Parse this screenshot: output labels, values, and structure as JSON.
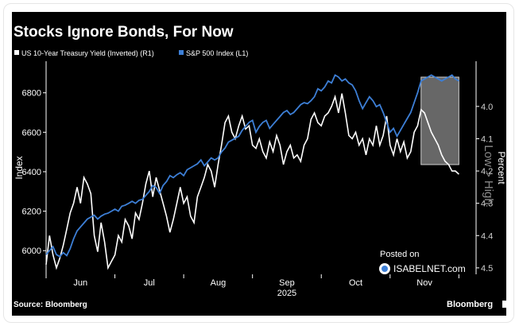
{
  "chart_data": {
    "type": "line",
    "title": "Stocks Ignore Bonds, For Now",
    "legend": [
      {
        "label": "US 10-Year Treasury Yield (Inverted) (R1)",
        "color": "#ffffff"
      },
      {
        "label": "S&P 500 Index (L1)",
        "color": "#3d7fd6"
      }
    ],
    "ylabel_left": "Index",
    "ylabel_right": "Percent",
    "right_axis_note": "Low > High",
    "x_ticks": [
      "Jun",
      "Jul",
      "Aug",
      "Sep",
      "Oct",
      "Nov"
    ],
    "x_year": "2025",
    "ylim_left": [
      5880,
      6960
    ],
    "yticks_left": [
      "6000",
      "6200",
      "6400",
      "6600",
      "6800"
    ],
    "ylim_right_inverted": [
      3.86,
      4.52
    ],
    "yticks_right": [
      "4.0",
      "4.1",
      "4.2",
      "4.3",
      "4.4",
      "4.5"
    ],
    "x_range_months": [
      0,
      6.25
    ],
    "highlight_x_range_months": [
      5.45,
      6.0
    ],
    "series": [
      {
        "name": "US 10-Year Treasury Yield (Inverted) (R1)",
        "axis": "right",
        "color": "#ffffff",
        "x": [
          0.0,
          0.05,
          0.1,
          0.15,
          0.2,
          0.25,
          0.3,
          0.35,
          0.4,
          0.45,
          0.5,
          0.55,
          0.6,
          0.65,
          0.7,
          0.75,
          0.8,
          0.85,
          0.9,
          0.95,
          1.0,
          1.05,
          1.1,
          1.15,
          1.2,
          1.25,
          1.3,
          1.35,
          1.4,
          1.45,
          1.5,
          1.55,
          1.6,
          1.65,
          1.7,
          1.75,
          1.8,
          1.85,
          1.9,
          1.95,
          2.0,
          2.05,
          2.1,
          2.15,
          2.2,
          2.25,
          2.3,
          2.35,
          2.4,
          2.45,
          2.5,
          2.55,
          2.6,
          2.65,
          2.7,
          2.75,
          2.8,
          2.85,
          2.9,
          2.95,
          3.0,
          3.05,
          3.1,
          3.15,
          3.2,
          3.25,
          3.3,
          3.35,
          3.4,
          3.45,
          3.5,
          3.55,
          3.6,
          3.65,
          3.7,
          3.75,
          3.8,
          3.85,
          3.9,
          3.95,
          4.0,
          4.05,
          4.1,
          4.15,
          4.2,
          4.25,
          4.3,
          4.35,
          4.4,
          4.45,
          4.5,
          4.55,
          4.6,
          4.65,
          4.7,
          4.75,
          4.8,
          4.85,
          4.9,
          4.95,
          5.0,
          5.05,
          5.1,
          5.15,
          5.2,
          5.25,
          5.3,
          5.35,
          5.4,
          5.45,
          5.5,
          5.55,
          5.6,
          5.65,
          5.7,
          5.75,
          5.8,
          5.85,
          5.9,
          5.95,
          6.0
        ],
        "values": [
          4.49,
          4.4,
          4.46,
          4.5,
          4.47,
          4.43,
          4.38,
          4.33,
          4.3,
          4.25,
          4.3,
          4.22,
          4.24,
          4.27,
          4.4,
          4.45,
          4.36,
          4.42,
          4.5,
          4.48,
          4.46,
          4.4,
          4.42,
          4.35,
          4.37,
          4.41,
          4.33,
          4.35,
          4.3,
          4.24,
          4.2,
          4.28,
          4.22,
          4.26,
          4.3,
          4.34,
          4.39,
          4.35,
          4.3,
          4.25,
          4.3,
          4.28,
          4.34,
          4.36,
          4.28,
          4.25,
          4.22,
          4.18,
          4.2,
          4.25,
          4.18,
          4.12,
          4.05,
          4.03,
          4.08,
          4.1,
          4.06,
          4.03,
          4.07,
          4.06,
          4.12,
          4.13,
          4.1,
          4.14,
          4.16,
          4.11,
          4.14,
          4.09,
          4.12,
          4.18,
          4.14,
          4.12,
          4.16,
          4.15,
          4.17,
          4.12,
          4.1,
          4.04,
          4.02,
          4.05,
          4.06,
          4.03,
          4.02,
          4.0,
          3.97,
          4.02,
          3.96,
          4.02,
          4.09,
          4.1,
          4.08,
          4.12,
          4.1,
          4.15,
          4.1,
          4.12,
          4.06,
          4.12,
          4.09,
          4.03,
          4.12,
          4.15,
          4.1,
          4.14,
          4.11,
          4.16,
          4.14,
          4.08,
          4.06,
          4.01,
          4.02,
          4.05,
          4.08,
          4.1,
          4.12,
          4.15,
          4.17,
          4.18,
          4.2,
          4.2,
          4.21
        ]
      },
      {
        "name": "S&P 500 Index (L1)",
        "axis": "left",
        "color": "#3d7fd6",
        "x": [
          0.0,
          0.05,
          0.1,
          0.15,
          0.2,
          0.25,
          0.3,
          0.35,
          0.4,
          0.45,
          0.5,
          0.55,
          0.6,
          0.65,
          0.7,
          0.75,
          0.8,
          0.85,
          0.9,
          0.95,
          1.0,
          1.05,
          1.1,
          1.15,
          1.2,
          1.25,
          1.3,
          1.35,
          1.4,
          1.45,
          1.5,
          1.55,
          1.6,
          1.65,
          1.7,
          1.75,
          1.8,
          1.85,
          1.9,
          1.95,
          2.0,
          2.05,
          2.1,
          2.15,
          2.2,
          2.25,
          2.3,
          2.35,
          2.4,
          2.45,
          2.5,
          2.55,
          2.6,
          2.65,
          2.7,
          2.75,
          2.8,
          2.85,
          2.9,
          2.95,
          3.0,
          3.05,
          3.1,
          3.15,
          3.2,
          3.25,
          3.3,
          3.35,
          3.4,
          3.45,
          3.5,
          3.55,
          3.6,
          3.65,
          3.7,
          3.75,
          3.8,
          3.85,
          3.9,
          3.95,
          4.0,
          4.05,
          4.1,
          4.15,
          4.2,
          4.25,
          4.3,
          4.35,
          4.4,
          4.45,
          4.5,
          4.55,
          4.6,
          4.65,
          4.7,
          4.75,
          4.8,
          4.85,
          4.9,
          4.95,
          5.0,
          5.05,
          5.1,
          5.15,
          5.2,
          5.25,
          5.3,
          5.35,
          5.4,
          5.45,
          5.5,
          5.55,
          5.6,
          5.65,
          5.7,
          5.75,
          5.8,
          5.85,
          5.9,
          5.95,
          6.0
        ],
        "values": [
          5980,
          6000,
          6020,
          5980,
          5970,
          5990,
          5975,
          6010,
          6060,
          6100,
          6120,
          6140,
          6160,
          6170,
          6180,
          6160,
          6175,
          6185,
          6190,
          6200,
          6210,
          6200,
          6225,
          6230,
          6240,
          6250,
          6240,
          6255,
          6260,
          6280,
          6300,
          6330,
          6320,
          6290,
          6330,
          6350,
          6380,
          6370,
          6385,
          6395,
          6380,
          6410,
          6420,
          6430,
          6440,
          6460,
          6430,
          6450,
          6470,
          6460,
          6470,
          6500,
          6520,
          6550,
          6560,
          6570,
          6580,
          6610,
          6630,
          6650,
          6660,
          6600,
          6630,
          6650,
          6660,
          6620,
          6640,
          6660,
          6680,
          6700,
          6710,
          6690,
          6700,
          6720,
          6740,
          6750,
          6745,
          6760,
          6780,
          6820,
          6810,
          6830,
          6860,
          6850,
          6890,
          6880,
          6860,
          6870,
          6850,
          6840,
          6810,
          6760,
          6720,
          6750,
          6780,
          6760,
          6730,
          6740,
          6700,
          6650,
          6600,
          6620,
          6580,
          6610,
          6640,
          6670,
          6700,
          6750,
          6800,
          6860,
          6870,
          6880,
          6890,
          6880,
          6870,
          6860,
          6870,
          6880,
          6890,
          6870,
          6860
        ]
      }
    ]
  },
  "annotations": {
    "posted_on": "Posted on",
    "watermark": "ISABELNET.com",
    "source": "Source: Bloomberg",
    "brand": "Bloomberg"
  }
}
